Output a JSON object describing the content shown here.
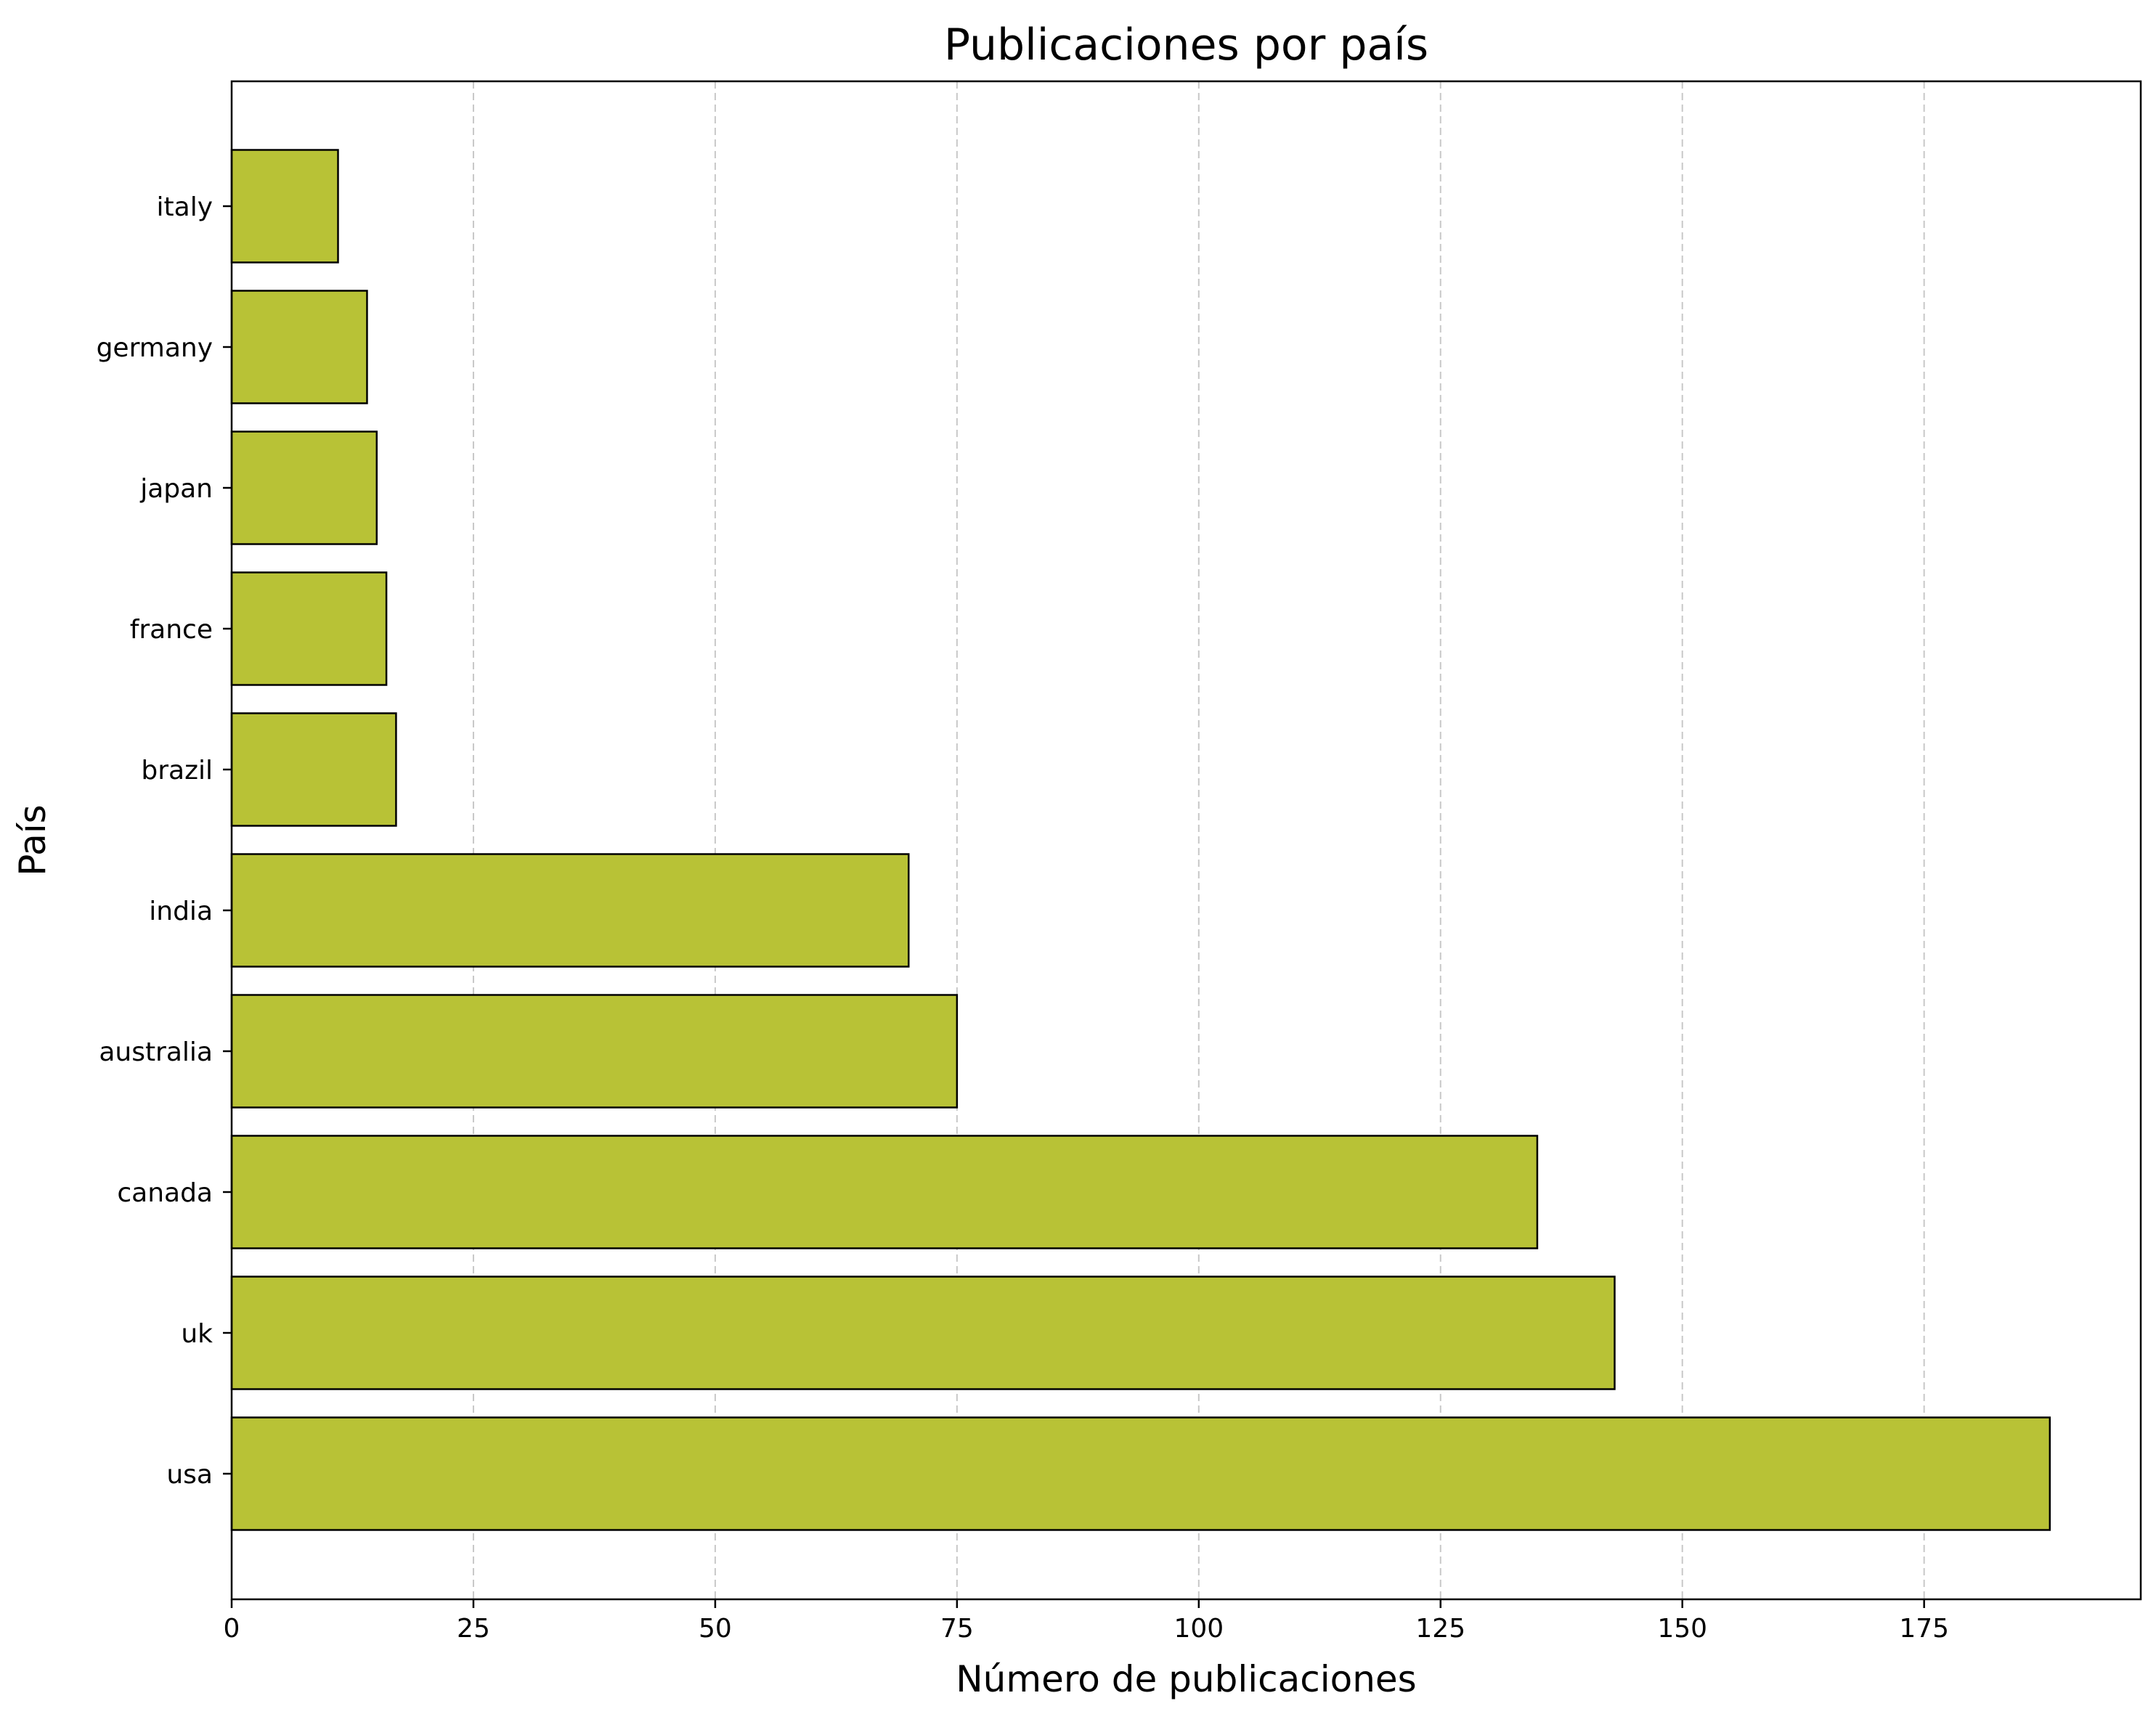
{
  "chart_data": {
    "type": "bar",
    "orientation": "horizontal",
    "title": "Publicaciones por país",
    "xlabel": "Número de publicaciones",
    "ylabel": "País",
    "categories": [
      "usa",
      "uk",
      "canada",
      "australia",
      "india",
      "brazil",
      "france",
      "japan",
      "germany",
      "italy"
    ],
    "values": [
      188,
      143,
      135,
      75,
      70,
      17,
      16,
      15,
      14,
      11
    ],
    "xlim": [
      0,
      197.4
    ],
    "xticks": [
      0,
      25,
      50,
      75,
      100,
      125,
      150,
      175
    ],
    "grid": "x-dashed",
    "bar_color": "#b8c236",
    "edge_color": "#000000",
    "grid_color": "#c8c8c8"
  }
}
